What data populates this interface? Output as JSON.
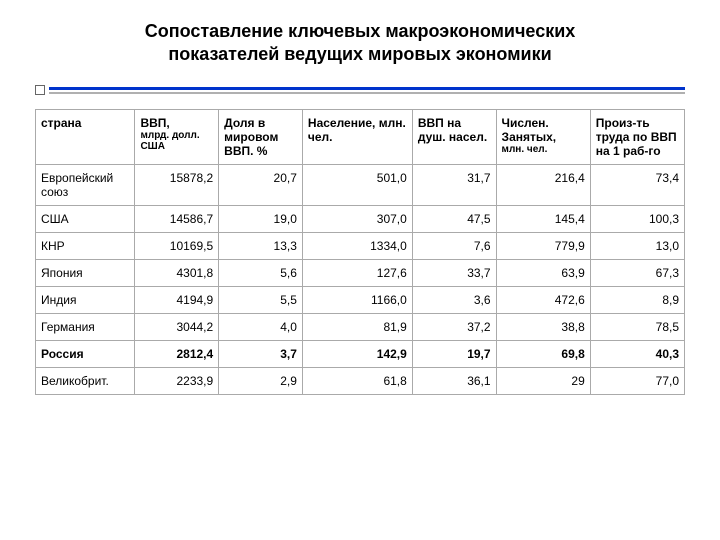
{
  "title_line1": "Сопоставление ключевых макроэкономических",
  "title_line2": "показателей ведущих мировых экономики",
  "table": {
    "headers": [
      {
        "main": "страна",
        "sub": ""
      },
      {
        "main": "ВВП,",
        "sub": "млрд. долл. США"
      },
      {
        "main": "Доля в мировом ВВП. %",
        "sub": ""
      },
      {
        "main": "Население, млн. чел.",
        "sub": ""
      },
      {
        "main": "ВВП на душ. насел.",
        "sub": ""
      },
      {
        "main": "Числен. Занятых,",
        "sub": "млн. чел."
      },
      {
        "main": "Произ-ть труда по ВВП на 1 раб-го",
        "sub": ""
      }
    ],
    "rows": [
      {
        "bold": false,
        "cells": [
          "Европейский союз",
          "15878,2",
          "20,7",
          "501,0",
          "31,7",
          "216,4",
          "73,4"
        ]
      },
      {
        "bold": false,
        "cells": [
          "США",
          "14586,7",
          "19,0",
          "307,0",
          "47,5",
          "145,4",
          "100,3"
        ]
      },
      {
        "bold": false,
        "cells": [
          "КНР",
          "10169,5",
          "13,3",
          "1334,0",
          "7,6",
          "779,9",
          "13,0"
        ]
      },
      {
        "bold": false,
        "cells": [
          "Япония",
          "4301,8",
          "5,6",
          "127,6",
          "33,7",
          "63,9",
          "67,3"
        ]
      },
      {
        "bold": false,
        "cells": [
          "Индия",
          "4194,9",
          "5,5",
          "1166,0",
          "3,6",
          "472,6",
          "8,9"
        ]
      },
      {
        "bold": false,
        "cells": [
          "Германия",
          "3044,2",
          "4,0",
          "81,9",
          "37,2",
          "38,8",
          "78,5"
        ]
      },
      {
        "bold": true,
        "cells": [
          "Россия",
          "2812,4",
          "3,7",
          "142,9",
          "19,7",
          "69,8",
          "40,3"
        ]
      },
      {
        "bold": false,
        "cells": [
          "Великобрит.",
          "2233,9",
          "2,9",
          "61,8",
          "36,1",
          "29",
          "77,0"
        ]
      }
    ]
  },
  "style": {
    "rule_blue": "#0033cc",
    "rule_gray": "#b0b0b0",
    "border": "#aaaaaa",
    "bg": "#ffffff"
  }
}
